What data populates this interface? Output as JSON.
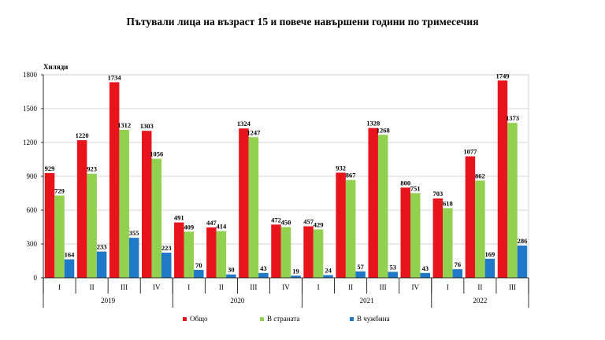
{
  "title": "Пътували лица на възраст 15 и повече навършени години по тримесечия",
  "chart_data": {
    "type": "bar",
    "title": "Пътували лица на възраст 15 и повече навършени години по тримесечия",
    "ylabel": "Хиляди",
    "xlabel": "",
    "ylim": [
      0,
      1800
    ],
    "yticks": [
      0,
      300,
      600,
      900,
      1200,
      1500,
      1800
    ],
    "grid": true,
    "legend_position": "bottom",
    "categories": [
      "I",
      "II",
      "III",
      "IV",
      "I",
      "II",
      "III",
      "IV",
      "I",
      "II",
      "III",
      "IV",
      "I",
      "II",
      "III"
    ],
    "groups": [
      {
        "label": "2019",
        "count": 4
      },
      {
        "label": "2020",
        "count": 4
      },
      {
        "label": "2021",
        "count": 4
      },
      {
        "label": "2022",
        "count": 3
      }
    ],
    "series": [
      {
        "name": "Общо",
        "color": "#e8141c",
        "values": [
          929,
          1220,
          1734,
          1303,
          491,
          447,
          1324,
          472,
          457,
          932,
          1328,
          800,
          703,
          1077,
          1749
        ]
      },
      {
        "name": "В страната",
        "color": "#92d050",
        "values": [
          729,
          923,
          1312,
          1056,
          409,
          414,
          1247,
          450,
          429,
          867,
          1268,
          751,
          618,
          862,
          1373
        ]
      },
      {
        "name": "В чужбина",
        "color": "#1f78c8",
        "values": [
          164,
          233,
          355,
          223,
          70,
          30,
          43,
          19,
          24,
          57,
          53,
          43,
          76,
          169,
          286
        ]
      }
    ]
  }
}
